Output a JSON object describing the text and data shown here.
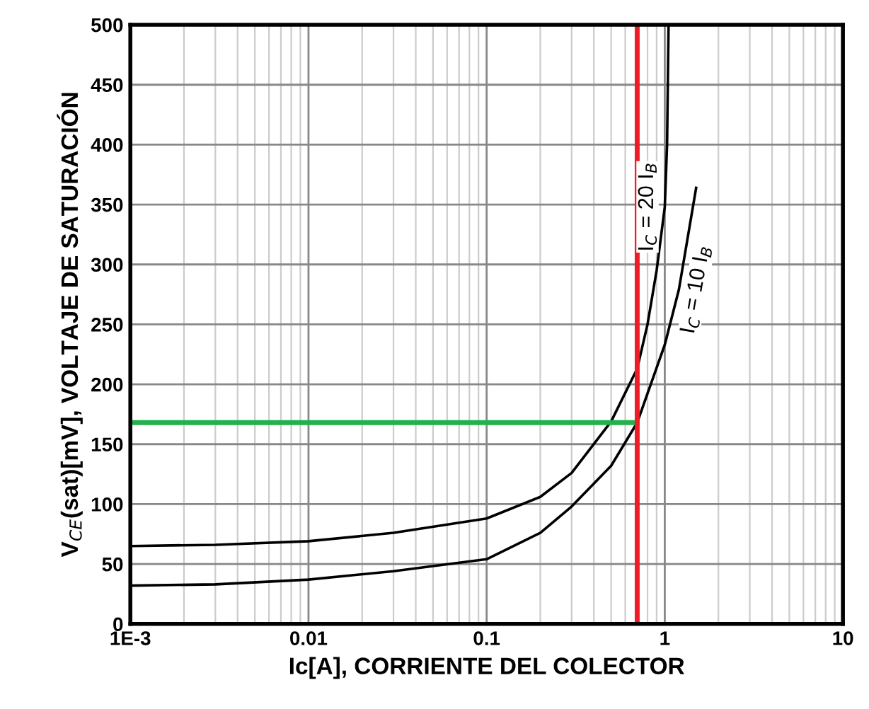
{
  "chart_data": {
    "type": "line",
    "xlabel": "Ic[A], CORRIENTE DEL COLECTOR",
    "ylabel": "V$_{CE}$(sat)[mV], VOLTAJE DE SATURACIÓN",
    "log": "x",
    "xlim": [
      0.001,
      10
    ],
    "xticks": [
      {
        "value": 0.001,
        "label": "1E-3"
      },
      0.01,
      0.1,
      1,
      10
    ],
    "ylim": [
      0,
      500
    ],
    "yticks": [
      0,
      50,
      100,
      150,
      200,
      250,
      300,
      350,
      400,
      450,
      500
    ],
    "grid": true,
    "series": [
      {
        "name": "I$_{C}$ = 20 I$_{B}$",
        "color": "#000000",
        "x": [
          0.001,
          0.003,
          0.01,
          0.03,
          0.1,
          0.2,
          0.3,
          0.5,
          0.7,
          0.8,
          0.9,
          1.0,
          1.03,
          1.05
        ],
        "values": [
          65,
          66,
          69,
          76,
          88,
          106,
          126,
          169,
          213,
          250,
          295,
          348,
          400,
          500
        ]
      },
      {
        "name": "I$_{C}$ = 10 I$_{B}$",
        "color": "#000000",
        "x": [
          0.001,
          0.003,
          0.01,
          0.03,
          0.1,
          0.2,
          0.3,
          0.5,
          0.7,
          1.0,
          1.2,
          1.5
        ],
        "values": [
          32,
          33,
          37,
          44,
          54,
          76,
          98,
          132,
          168,
          233,
          279,
          364
        ]
      },
      {
        "color": "#22b14c",
        "x": [
          0.001,
          0.7
        ],
        "values": [
          168,
          168
        ]
      }
    ],
    "ref_lines": [
      {
        "axis": "x",
        "value": 0.7,
        "color": "#ee1c25"
      }
    ]
  }
}
